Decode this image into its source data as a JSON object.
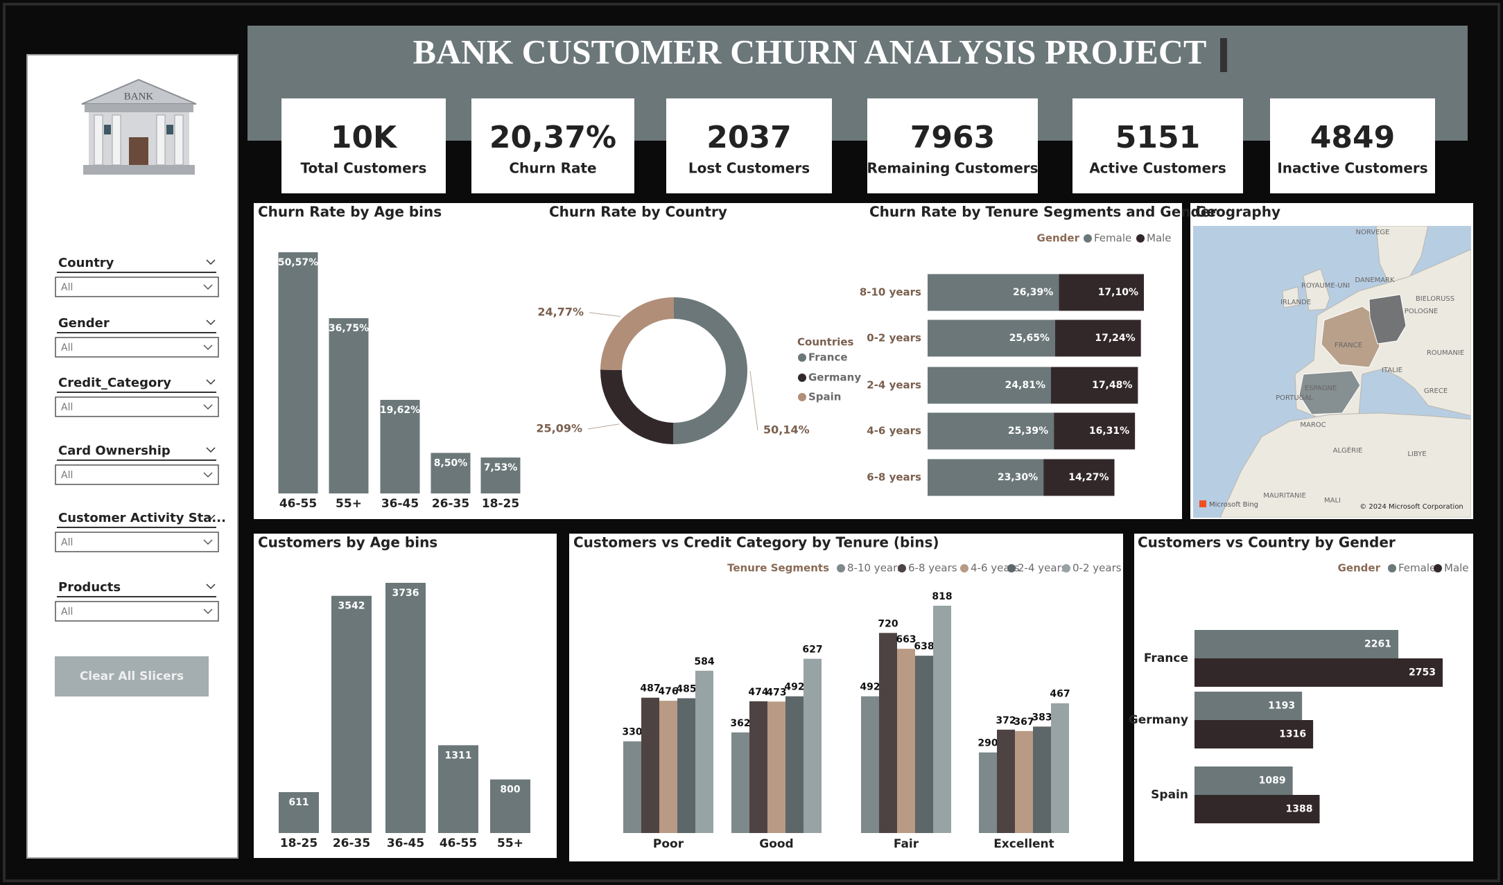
{
  "header": {
    "title": "BANK CUSTOMER CHURN ANALYSIS PROJECT"
  },
  "kpis": [
    {
      "value": "10K",
      "label": "Total Customers"
    },
    {
      "value": "20,37%",
      "label": "Churn Rate"
    },
    {
      "value": "2037",
      "label": "Lost Customers"
    },
    {
      "value": "7963",
      "label": "Remaining Customers"
    },
    {
      "value": "5151",
      "label": "Active Customers"
    },
    {
      "value": "4849",
      "label": "Inactive Customers"
    }
  ],
  "slicer_panel": {
    "logo_text": "BANK",
    "slicers": [
      {
        "label": "Country",
        "value": "All"
      },
      {
        "label": "Gender",
        "value": "All"
      },
      {
        "label": "Credit_Category",
        "value": "All"
      },
      {
        "label": "Card Ownership",
        "value": "All"
      },
      {
        "label": "Customer Activity Sta...",
        "value": "All"
      },
      {
        "label": "Products",
        "value": "All"
      }
    ],
    "clear_button": "Clear All Slicers"
  },
  "geography": {
    "title": "Geography",
    "labels": [
      "NORVEGE",
      "DANEMARK",
      "ROYAUME-UNI",
      "IRLANDE",
      "POLOGNE",
      "BIELORUSS",
      "FRANCE",
      "ITALIE",
      "ESPAGNE",
      "PORTUGAL",
      "ROUMANIE",
      "GRECE",
      "MAROC",
      "ALGÉRIE",
      "LIBYE",
      "MAURITANIE",
      "MALI"
    ],
    "provider": "Microsoft Bing",
    "copyright": "© 2024 Microsoft Corporation"
  },
  "chart_data": [
    {
      "type": "bar",
      "title": "Churn Rate by Age bins",
      "categories": [
        "46-55",
        "55+",
        "36-45",
        "26-35",
        "18-25"
      ],
      "values": [
        50.57,
        36.75,
        19.62,
        8.5,
        7.53
      ],
      "value_labels": [
        "50,57%",
        "36,75%",
        "19,62%",
        "8,50%",
        "7,53%"
      ],
      "color": "#6b7779"
    },
    {
      "type": "pie",
      "title": "Churn Rate by Country",
      "legend_title": "Countries",
      "categories": [
        "France",
        "Germany",
        "Spain"
      ],
      "values": [
        50.14,
        25.09,
        24.77
      ],
      "value_labels": [
        "50,14%",
        "25,09%",
        "24,77%"
      ],
      "colors": [
        "#6b7779",
        "#332829",
        "#b08e78"
      ]
    },
    {
      "type": "stacked_bar_h",
      "title": "Churn Rate by Tenure Segments and Gender",
      "legend_title": "Gender",
      "categories": [
        "8-10 years",
        "0-2 years",
        "2-4 years",
        "4-6 years",
        "6-8 years"
      ],
      "series": [
        {
          "name": "Female",
          "color": "#6b7779",
          "values": [
            26.39,
            25.65,
            24.81,
            25.39,
            23.3
          ],
          "value_labels": [
            "26,39%",
            "25,65%",
            "24,81%",
            "25,39%",
            "23,30%"
          ]
        },
        {
          "name": "Male",
          "color": "#332829",
          "values": [
            17.1,
            17.24,
            17.48,
            16.31,
            14.27
          ],
          "value_labels": [
            "17,10%",
            "17,24%",
            "17,48%",
            "16,31%",
            "14,27%"
          ]
        }
      ]
    },
    {
      "type": "bar",
      "title": "Customers by Age bins",
      "categories": [
        "18-25",
        "26-35",
        "36-45",
        "46-55",
        "55+"
      ],
      "values": [
        611,
        3542,
        3736,
        1311,
        800
      ],
      "color": "#6b7779"
    },
    {
      "type": "grouped_bar",
      "title": "Customers vs Credit Category by Tenure (bins)",
      "legend_title": "Tenure Segments",
      "categories": [
        "Poor",
        "Good",
        "Fair",
        "Excellent"
      ],
      "series": [
        {
          "name": "8-10 years",
          "color": "#7d898b",
          "values": [
            330,
            362,
            492,
            290
          ]
        },
        {
          "name": "6-8 years",
          "color": "#4e4343",
          "values": [
            487,
            474,
            720,
            372
          ]
        },
        {
          "name": "4-6 years",
          "color": "#b89a85",
          "values": [
            476,
            473,
            663,
            367
          ]
        },
        {
          "name": "2-4 years",
          "color": "#5d6668",
          "values": [
            485,
            492,
            638,
            383
          ]
        },
        {
          "name": "0-2 years",
          "color": "#97a3a5",
          "values": [
            584,
            627,
            818,
            467
          ]
        }
      ]
    },
    {
      "type": "grouped_bar_h",
      "title": "Customers vs Country by Gender",
      "legend_title": "Gender",
      "categories": [
        "France",
        "Germany",
        "Spain"
      ],
      "series": [
        {
          "name": "Female",
          "color": "#6b7779",
          "values": [
            2261,
            1193,
            1089
          ]
        },
        {
          "name": "Male",
          "color": "#332829",
          "values": [
            2753,
            1316,
            1388
          ]
        }
      ]
    }
  ]
}
